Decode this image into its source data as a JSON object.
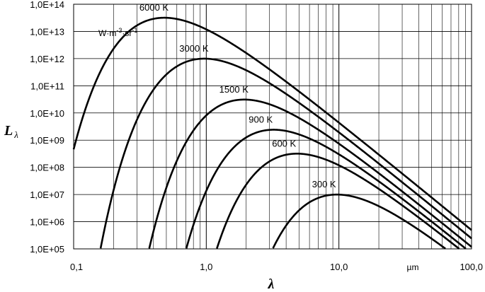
{
  "chart_data": {
    "type": "line",
    "xscale": "log",
    "yscale": "log",
    "xlim": [
      0.1,
      100
    ],
    "ylim": [
      100000,
      100000000000000
    ],
    "grid": true,
    "xticks": [
      "0,1",
      "1,0",
      "10,0",
      "100,0"
    ],
    "xunit_label": "µm",
    "yticks": [
      "1,0E+05",
      "1,0E+06",
      "1,0E+07",
      "1,0E+08",
      "1,0E+09",
      "1,0E+10",
      "1,0E+11",
      "1,0E+12",
      "1,0E+13",
      "1,0E+14"
    ],
    "ylabel": {
      "main": "L",
      "sub": "λ"
    },
    "xlabel": "λ",
    "unit_label": {
      "base": "W·m",
      "exp1": "-3",
      "mid": "·sr",
      "exp2": "-1"
    },
    "series": [
      {
        "name": "6000 K",
        "temperature": 6000
      },
      {
        "name": "3000 K",
        "temperature": 3000
      },
      {
        "name": "1500 K",
        "temperature": 1500
      },
      {
        "name": "900 K",
        "temperature": 900
      },
      {
        "name": "600 K",
        "temperature": 600
      },
      {
        "name": "300 K",
        "temperature": 300
      }
    ]
  }
}
